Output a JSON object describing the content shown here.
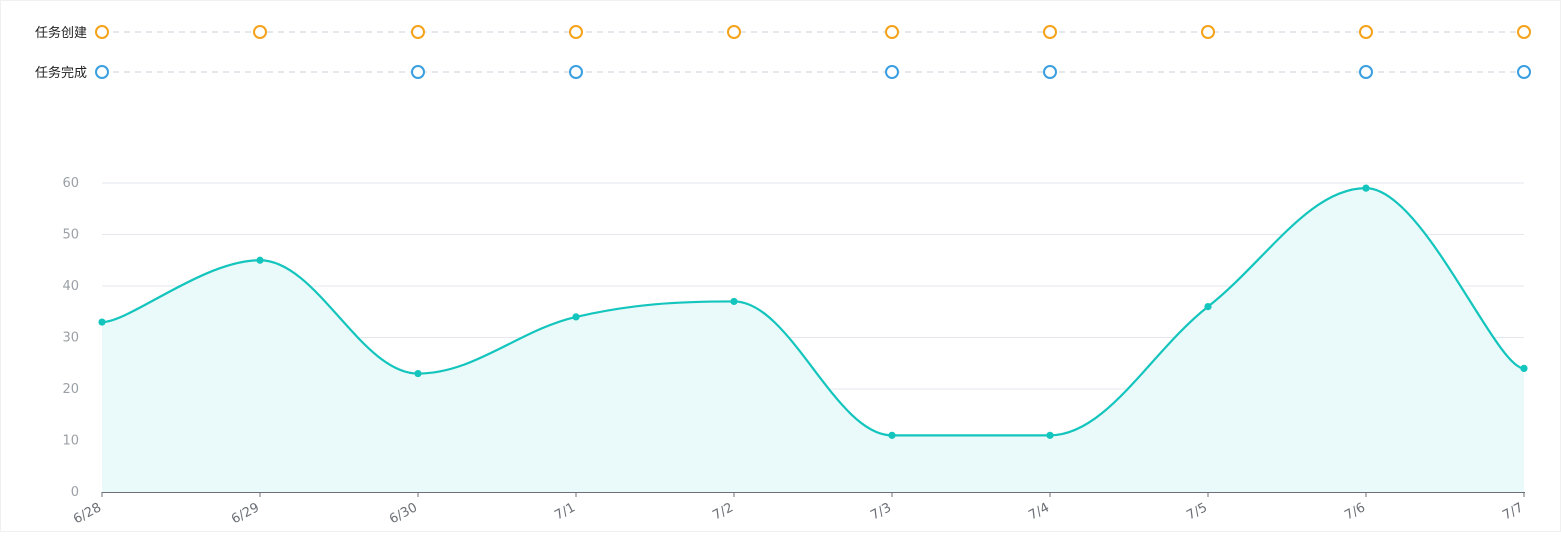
{
  "colors": {
    "line": "#13c5bd",
    "area": "#eaf9f9",
    "created_marker": "#f5a21b",
    "completed_marker": "#3a9fe0",
    "grid": "#e4e7ed",
    "track": "#dcdfe6",
    "axis_text": "#9aa0a6",
    "tick_text": "#6b6f75",
    "row_label": "#222222"
  },
  "timeline": {
    "rows": [
      {
        "label": "任务创建",
        "color_key": "created_marker",
        "active": [
          true,
          true,
          true,
          true,
          true,
          true,
          true,
          true,
          true,
          true
        ]
      },
      {
        "label": "任务完成",
        "color_key": "completed_marker",
        "active": [
          true,
          false,
          true,
          true,
          false,
          true,
          true,
          false,
          true,
          true
        ]
      }
    ]
  },
  "chart_data": {
    "type": "area",
    "categories": [
      "6/28",
      "6/29",
      "6/30",
      "7/1",
      "7/2",
      "7/3",
      "7/4",
      "7/5",
      "7/6",
      "7/7"
    ],
    "series": [
      {
        "values": [
          33,
          45,
          23,
          34,
          37,
          11,
          11,
          36,
          59,
          24
        ]
      }
    ],
    "yticks": [
      0,
      10,
      20,
      30,
      40,
      50,
      60
    ],
    "ylim": [
      0,
      60
    ],
    "grid": true,
    "smooth": true,
    "xlabel": "",
    "ylabel": "",
    "title": ""
  }
}
